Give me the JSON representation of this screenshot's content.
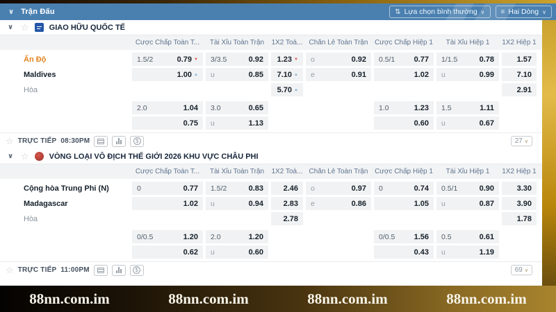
{
  "topbar": {
    "title": "Trận Đấu",
    "filter_label": "Lựa chọn bình thường",
    "lines_label": "Hai Dòng"
  },
  "columns": [
    "Cược Chấp Toàn T...",
    "Tài Xỉu Toàn Trận",
    "1X2 Toà...",
    "Chẵn Lẻ Toàn Trận",
    "Cược Chấp Hiệp 1",
    "Tài Xỉu Hiệp 1",
    "1X2 Hiệp 1"
  ],
  "sections": [
    {
      "league": "GIAO HỮU QUỐC TẾ",
      "logo": "logo-blue",
      "rows": [
        {
          "team": "Ấn Độ",
          "team_class": "fav",
          "cells": [
            {
              "l": "1.5/2",
              "r": "0.79",
              "t": "down"
            },
            {
              "l": "3/3.5",
              "r": "0.92"
            },
            {
              "r": "1.23",
              "t": "down"
            },
            {
              "l": "o",
              "r": "0.92"
            },
            {
              "l": "0.5/1",
              "r": "0.77"
            },
            {
              "l": "1/1.5",
              "r": "0.78"
            },
            {
              "r": "1.57"
            }
          ]
        },
        {
          "team": "Maldives",
          "team_class": "strong",
          "cells": [
            {
              "r": "1.00",
              "t": "up"
            },
            {
              "l": "u",
              "r": "0.85"
            },
            {
              "r": "7.10",
              "t": "up"
            },
            {
              "l": "e",
              "r": "0.91"
            },
            {
              "r": "1.02"
            },
            {
              "l": "u",
              "r": "0.99"
            },
            {
              "r": "7.10"
            }
          ]
        },
        {
          "team": "Hòa",
          "team_class": "muted",
          "cells": [
            null,
            null,
            {
              "r": "5.70",
              "t": "up"
            },
            null,
            null,
            null,
            {
              "r": "2.91"
            }
          ]
        },
        {
          "team": "",
          "gap": true,
          "cells": [
            {
              "l": "2.0",
              "r": "1.04"
            },
            {
              "l": "3.0",
              "r": "0.65"
            },
            null,
            null,
            {
              "l": "1.0",
              "r": "1.23"
            },
            {
              "l": "1.5",
              "r": "1.11"
            },
            null
          ]
        },
        {
          "team": "",
          "cells": [
            {
              "r": "0.75"
            },
            {
              "l": "u",
              "r": "1.13"
            },
            null,
            null,
            {
              "r": "0.60"
            },
            {
              "l": "u",
              "r": "0.67"
            },
            null
          ]
        }
      ],
      "footer": {
        "live_label": "TRỰC TIẾP",
        "time": "08:30PM",
        "more_count": "27"
      }
    },
    {
      "league": "VÒNG LOẠI VÔ ĐỊCH THẾ GIỚI 2026 KHU VỰC CHÂU PHI",
      "logo": "logo-red",
      "rows": [
        {
          "team": "Cộng hòa Trung Phi (N)",
          "team_class": "strong",
          "cells": [
            {
              "l": "0",
              "r": "0.77"
            },
            {
              "l": "1.5/2",
              "r": "0.83"
            },
            {
              "r": "2.46"
            },
            {
              "l": "o",
              "r": "0.97"
            },
            {
              "l": "0",
              "r": "0.74"
            },
            {
              "l": "0.5/1",
              "r": "0.90"
            },
            {
              "r": "3.30"
            }
          ]
        },
        {
          "team": "Madagascar",
          "team_class": "strong",
          "cells": [
            {
              "r": "1.02"
            },
            {
              "l": "u",
              "r": "0.94"
            },
            {
              "r": "2.83"
            },
            {
              "l": "e",
              "r": "0.86"
            },
            {
              "r": "1.05"
            },
            {
              "l": "u",
              "r": "0.87"
            },
            {
              "r": "3.90"
            }
          ]
        },
        {
          "team": "Hòa",
          "team_class": "muted",
          "cells": [
            null,
            null,
            {
              "r": "2.78"
            },
            null,
            null,
            null,
            {
              "r": "1.78"
            }
          ]
        },
        {
          "team": "",
          "gap": true,
          "cells": [
            {
              "l": "0/0.5",
              "r": "1.20"
            },
            {
              "l": "2.0",
              "r": "1.20"
            },
            null,
            null,
            {
              "l": "0/0.5",
              "r": "1.56"
            },
            {
              "l": "0.5",
              "r": "0.61"
            },
            null
          ]
        },
        {
          "team": "",
          "cells": [
            {
              "r": "0.62"
            },
            {
              "l": "u",
              "r": "0.60"
            },
            null,
            null,
            {
              "r": "0.43"
            },
            {
              "l": "u",
              "r": "1.19"
            },
            null
          ]
        }
      ],
      "footer": {
        "live_label": "TRỰC TIẾP",
        "time": "11:00PM",
        "more_count": "69"
      }
    }
  ],
  "watermark": {
    "text": "88nn.com.im"
  },
  "colors": {
    "topbar_blue": "#4a80b0",
    "favorite_orange": "#e0821e",
    "trend_down_red": "#e05353",
    "trend_up_blue": "#85b2d4",
    "frame_gold": "#caa22c"
  }
}
